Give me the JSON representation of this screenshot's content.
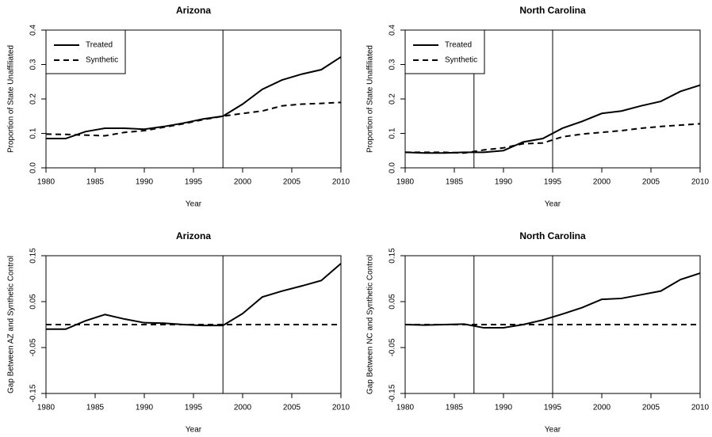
{
  "chart_data": [
    {
      "type": "line",
      "title": "Arizona",
      "xlabel": "Year",
      "ylabel": "Proportion of State Unaffiliated",
      "x": [
        1980,
        1982,
        1984,
        1986,
        1988,
        1990,
        1992,
        1994,
        1996,
        1998,
        2000,
        2002,
        2004,
        2006,
        2008,
        2010
      ],
      "series": [
        {
          "name": "Treated",
          "color": "#000000",
          "style": "solid",
          "values": [
            0.085,
            0.085,
            0.105,
            0.115,
            0.115,
            0.112,
            0.12,
            0.13,
            0.142,
            0.15,
            0.185,
            0.228,
            0.255,
            0.272,
            0.285,
            0.322
          ]
        },
        {
          "name": "Synthetic",
          "color": "#000000",
          "style": "dashed",
          "values": [
            0.098,
            0.097,
            0.095,
            0.093,
            0.103,
            0.108,
            0.118,
            0.128,
            0.14,
            0.15,
            0.158,
            0.165,
            0.18,
            0.185,
            0.187,
            0.19
          ]
        }
      ],
      "xlim": [
        1980,
        2010
      ],
      "xticks": [
        1980,
        1985,
        1990,
        1995,
        2000,
        2005,
        2010
      ],
      "ylim": [
        0,
        0.4
      ],
      "yticks": [
        {
          "value": 0,
          "label": "0.0"
        },
        0.1,
        0.2,
        0.3,
        0.4
      ],
      "vlines": [
        1998
      ],
      "legend": "top-left"
    },
    {
      "type": "line",
      "title": "North Carolina",
      "xlabel": "Year",
      "ylabel": "Proportion of State Unaffiliated",
      "x": [
        1980,
        1982,
        1984,
        1986,
        1988,
        1990,
        1992,
        1994,
        1996,
        1998,
        2000,
        2002,
        2004,
        2006,
        2008,
        2010
      ],
      "series": [
        {
          "name": "Treated",
          "color": "#000000",
          "style": "solid",
          "values": [
            0.045,
            0.043,
            0.043,
            0.045,
            0.045,
            0.05,
            0.075,
            0.085,
            0.115,
            0.135,
            0.158,
            0.165,
            0.18,
            0.193,
            0.222,
            0.24
          ]
        },
        {
          "name": "Synthetic",
          "color": "#000000",
          "style": "dashed",
          "values": [
            0.045,
            0.045,
            0.045,
            0.043,
            0.052,
            0.058,
            0.07,
            0.072,
            0.09,
            0.098,
            0.103,
            0.108,
            0.115,
            0.12,
            0.124,
            0.128
          ]
        }
      ],
      "xlim": [
        1980,
        2010
      ],
      "xticks": [
        1980,
        1985,
        1990,
        1995,
        2000,
        2005,
        2010
      ],
      "ylim": [
        0,
        0.4
      ],
      "yticks": [
        {
          "value": 0,
          "label": "0.0"
        },
        0.1,
        0.2,
        0.3,
        0.4
      ],
      "vlines": [
        1987,
        1995
      ],
      "legend": "top-left"
    },
    {
      "type": "line",
      "title": "Arizona",
      "xlabel": "Year",
      "ylabel": "Gap Between AZ and Synthetic Control",
      "x": [
        1980,
        1982,
        1984,
        1986,
        1988,
        1990,
        1992,
        1994,
        1996,
        1998,
        2000,
        2002,
        2004,
        2006,
        2008,
        2010
      ],
      "values": [
        -0.01,
        -0.01,
        0.008,
        0.022,
        0.012,
        0.004,
        0.003,
        0.0,
        -0.002,
        -0.002,
        0.024,
        0.06,
        0.073,
        0.084,
        0.096,
        0.133
      ],
      "color": "#000000",
      "xlim": [
        1980,
        2010
      ],
      "xticks": [
        1980,
        1985,
        1990,
        1995,
        2000,
        2005,
        2010
      ],
      "ylim": [
        -0.15,
        0.15
      ],
      "yticks": [
        -0.15,
        -0.05,
        0.05,
        0.15
      ],
      "vlines": [
        1998
      ],
      "hlines": [
        0
      ]
    },
    {
      "type": "line",
      "title": "North Carolina",
      "xlabel": "Year",
      "ylabel": "Gap Between NC and Synthetic Control",
      "x": [
        1980,
        1982,
        1984,
        1986,
        1988,
        1990,
        1992,
        1994,
        1996,
        1998,
        2000,
        2002,
        2004,
        2006,
        2008,
        2010
      ],
      "values": [
        0.0,
        -0.001,
        0.0,
        0.001,
        -0.007,
        -0.007,
        0.0,
        0.01,
        0.023,
        0.037,
        0.055,
        0.057,
        0.065,
        0.073,
        0.098,
        0.112
      ],
      "color": "#000000",
      "xlim": [
        1980,
        2010
      ],
      "xticks": [
        1980,
        1985,
        1990,
        1995,
        2000,
        2005,
        2010
      ],
      "ylim": [
        -0.15,
        0.15
      ],
      "yticks": [
        -0.15,
        -0.05,
        0.05,
        0.15
      ],
      "vlines": [
        1987,
        1995
      ],
      "hlines": [
        0
      ]
    }
  ]
}
